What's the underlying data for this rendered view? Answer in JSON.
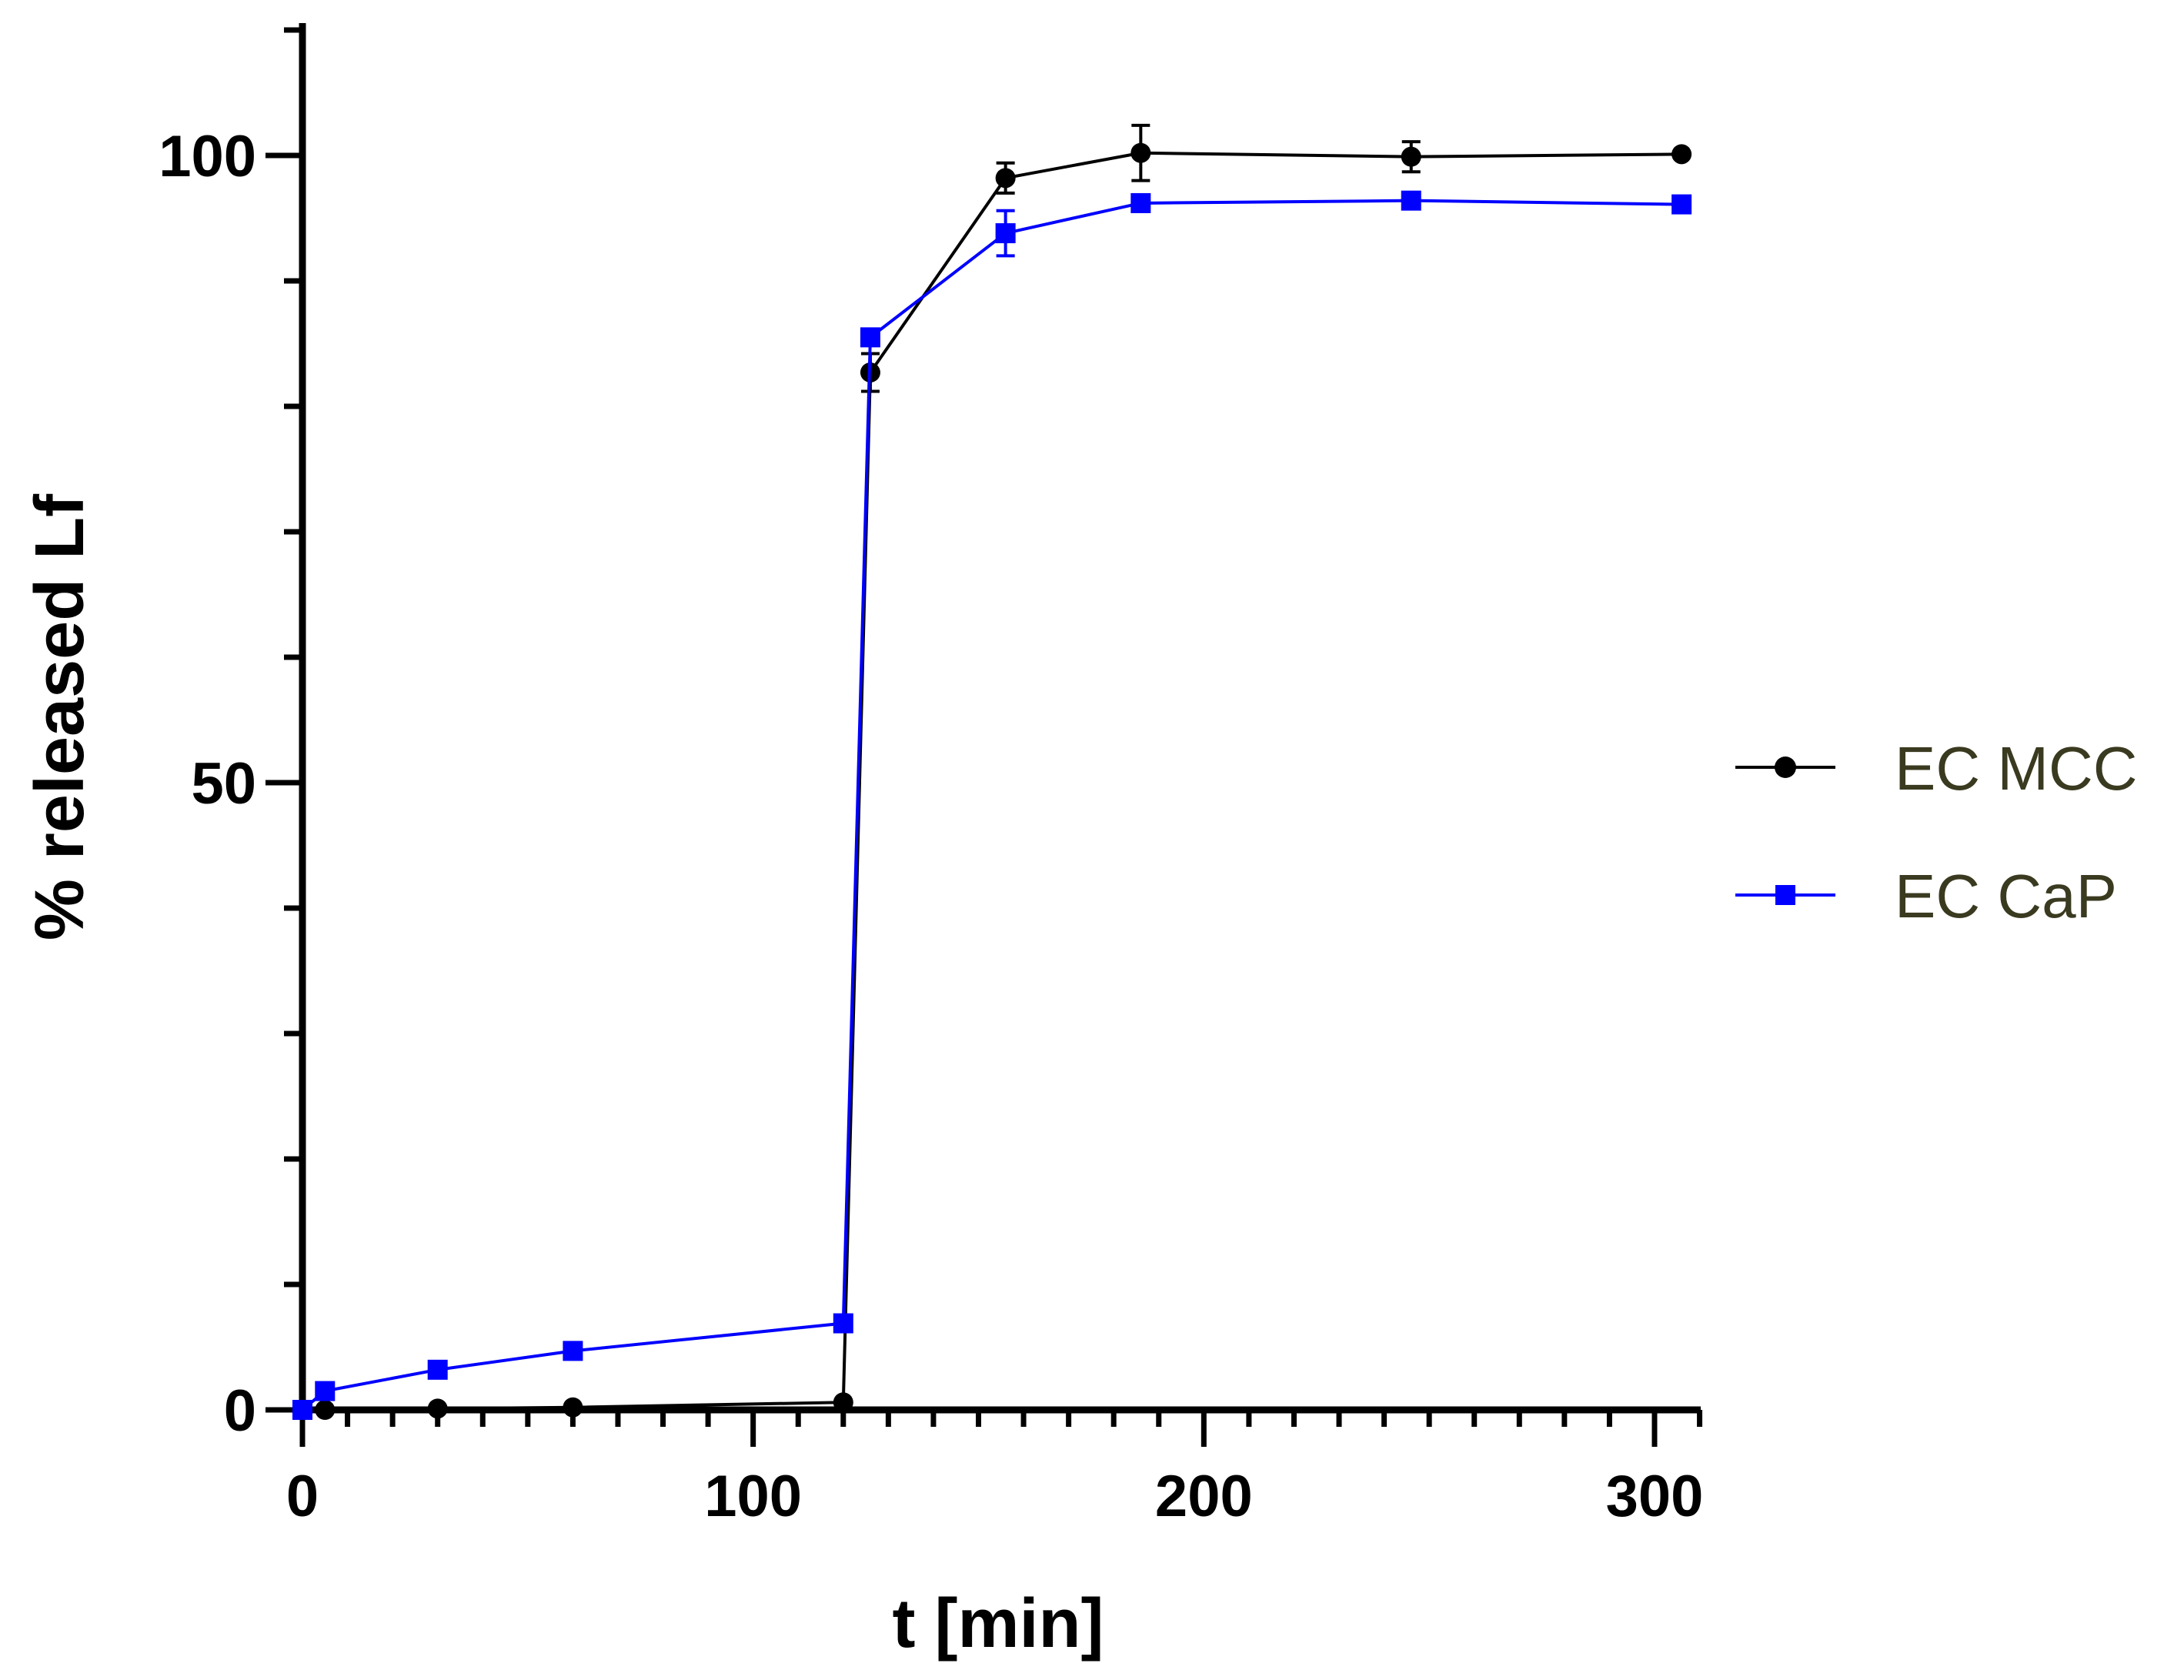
{
  "chart_data": {
    "type": "line",
    "title": "",
    "xlabel": "t [min]",
    "ylabel": "% released Lf",
    "xlim": [
      0,
      310
    ],
    "ylim": [
      0,
      110
    ],
    "xticks": [
      0,
      100,
      200,
      300
    ],
    "xtick_labels": [
      "0",
      "100",
      "200",
      "300"
    ],
    "yticks": [
      0,
      50,
      100
    ],
    "ytick_labels": [
      "0",
      "50",
      "100"
    ],
    "x_minor_step": 10,
    "y_minor_step": 10,
    "grid": false,
    "legend_position": "right",
    "series": [
      {
        "name": "EC MCC",
        "color": "#000000",
        "marker": "circle",
        "x": [
          0,
          5,
          30,
          60,
          120,
          126,
          156,
          186,
          246,
          306
        ],
        "y": [
          0,
          0,
          0.1,
          0.2,
          0.6,
          82.7,
          98.2,
          100.2,
          99.9,
          100.1
        ],
        "err": [
          0,
          0,
          0,
          0,
          0,
          1.5,
          1.2,
          2.2,
          1.2,
          0
        ]
      },
      {
        "name": "EC CaP",
        "color": "#0000ff",
        "marker": "square",
        "x": [
          0,
          5,
          30,
          60,
          120,
          126,
          156,
          186,
          246,
          306
        ],
        "y": [
          0,
          1.5,
          3.2,
          4.7,
          6.9,
          85.5,
          93.8,
          96.2,
          96.4,
          96.1
        ],
        "err": [
          0,
          0,
          0,
          0,
          0,
          0.6,
          1.8,
          0.6,
          0.6,
          0.6
        ]
      }
    ]
  },
  "legend": {
    "text_color": "#3a3a20",
    "items": [
      {
        "label": "EC MCC"
      },
      {
        "label": "EC CaP"
      }
    ]
  }
}
